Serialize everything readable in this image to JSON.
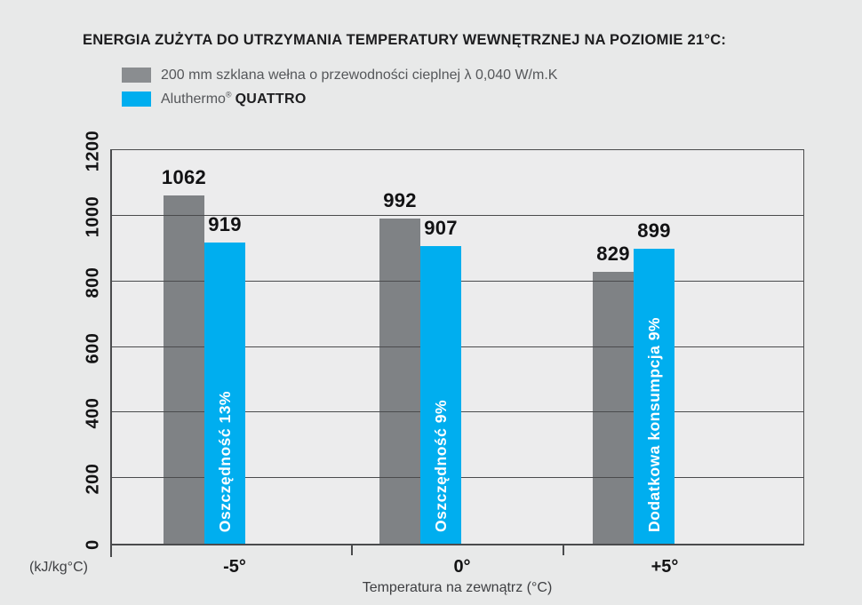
{
  "title": "ENERGIA ZUŻYTA DO UTRZYMANIA TEMPERATURY WEWNĘTRZNEJ NA POZIOMIE 21°C:",
  "legend": {
    "glasswool": {
      "label": "200 mm szklana wełna o przewodności cieplnej λ 0,040 W/m.K",
      "swatch_color": "#8a8d90"
    },
    "aluthermo": {
      "brand": "Aluthermo",
      "reg": "®",
      "product": "QUATTRO",
      "swatch_color": "#00aeef"
    }
  },
  "chart_data": {
    "type": "bar",
    "title": "ENERGIA ZUŻYTA DO UTRZYMANIA TEMPERATURY WEWNĘTRZNEJ NA POZIOMIE 21°C:",
    "categories": [
      "-5°",
      "0°",
      "+5°"
    ],
    "series": [
      {
        "name": "200 mm szklana wełna o przewodności cieplnej λ 0,040 W/m.K",
        "key": "glasswool",
        "color": "#7f8285",
        "values": [
          1062,
          992,
          829
        ]
      },
      {
        "name": "Aluthermo® QUATTRO",
        "key": "aluthermo",
        "color": "#00aeef",
        "values": [
          919,
          907,
          899
        ]
      }
    ],
    "bar_annotations": [
      {
        "category": "-5°",
        "text": "Oszczędność 13%"
      },
      {
        "category": "0°",
        "text": "Oszczędność 9%"
      },
      {
        "category": "+5°",
        "text": "Dodatkowa konsumpcja 9%"
      }
    ],
    "xlabel": "Temperatura na zewnątrz (°C)",
    "ylabel": "(kJ/kg°C)",
    "ylim": [
      0,
      1200
    ],
    "yticks": [
      0,
      200,
      400,
      600,
      800,
      1000,
      1200
    ],
    "grid": true,
    "legend_position": "top-left",
    "annotation_text_color": "#ffffff",
    "value_label_color": "#121214"
  },
  "colors": {
    "page_background": "#e8e9e9",
    "plot_background": "#ececed",
    "grid_line": "#4a4b4d",
    "bar_gray": "#7f8285",
    "bar_blue": "#00aeef",
    "title_text": "#1d1d1f",
    "legend_text": "#55575a",
    "axis_text": "#131314",
    "muted_text": "#3e3f42"
  }
}
